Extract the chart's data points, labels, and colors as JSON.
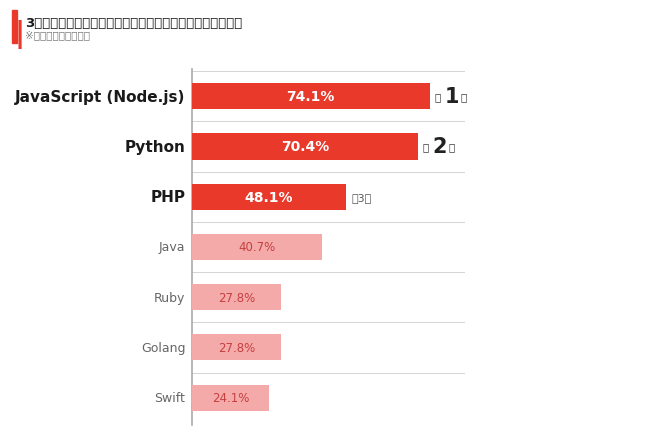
{
  "title_main": "3年後仕事で使えそうなプログラミング言語（複数回答可）",
  "title_sub": "※侍エンジニア塾調べ",
  "categories": [
    "JavaScript (Node.js)",
    "Python",
    "PHP",
    "Java",
    "Ruby",
    "Golang",
    "Swift"
  ],
  "values": [
    74.1,
    70.4,
    48.1,
    40.7,
    27.8,
    27.8,
    24.1
  ],
  "bar_colors": [
    "#E8392A",
    "#E8392A",
    "#E8392A",
    "#F5AAAA",
    "#F5AAAA",
    "#F5AAAA",
    "#F5AAAA"
  ],
  "label_colors_top3": "#FFFFFF",
  "label_colors_rest": "#C44040",
  "rank_numbers": [
    "1",
    "2",
    "3"
  ],
  "bg_color": "#FFFFFF",
  "accent_left_color": "#E8392A",
  "max_bar_width": 75,
  "bar_height": 0.52
}
